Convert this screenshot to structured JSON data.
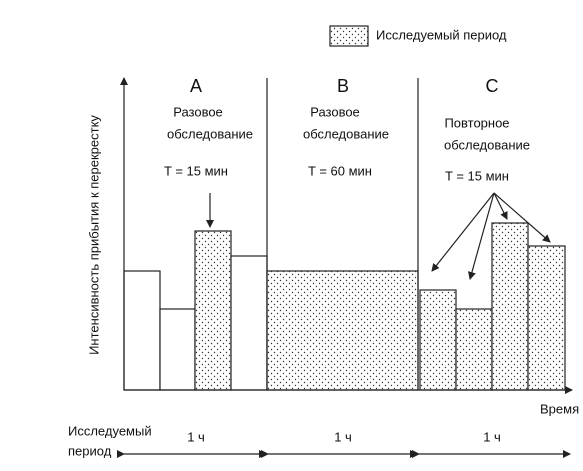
{
  "legend": {
    "label": "Исследуемый период"
  },
  "y_axis_label": "Интенсивность прибытия к перекрестку",
  "x_axis_label": "Время",
  "sections": [
    {
      "letter": "A",
      "lines": [
        "Разовое",
        "обследование"
      ],
      "duration": "T = 15 мин",
      "period": "1 ч"
    },
    {
      "letter": "B",
      "lines": [
        "Разовое",
        "обследование"
      ],
      "duration": "T = 60 мин",
      "period": "1 ч"
    },
    {
      "letter": "C",
      "lines": [
        "Повторное",
        "обследование"
      ],
      "duration": "T = 15 мин",
      "period": "1 ч"
    }
  ],
  "bottom_label": [
    "Исследуемый",
    "период"
  ]
}
